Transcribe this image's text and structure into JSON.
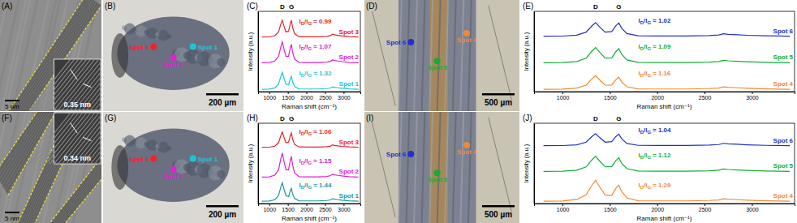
{
  "panels": [
    {
      "label": "(A)",
      "scale_bar": "5 nm",
      "inset_label": "0.35 nm"
    },
    {
      "label": "(B)",
      "scale_bar": "200 µm",
      "spots": [
        {
          "name": "Spot 3",
          "color": "#e8262b"
        },
        {
          "name": "Spot 2",
          "color": "#e020d0"
        },
        {
          "name": "Spot 1",
          "color": "#18c8d8"
        }
      ]
    },
    {
      "label": "(D)",
      "scale_bar": "500 µm",
      "spots": [
        {
          "name": "Spot 6",
          "color": "#2030c8"
        },
        {
          "name": "Spot 5",
          "color": "#10b030"
        },
        {
          "name": "Spot 4",
          "color": "#f08a30"
        }
      ]
    },
    {
      "label": "(F)",
      "scale_bar": "5 nm",
      "inset_label": "0.34 nm"
    },
    {
      "label": "(G)",
      "scale_bar": "200 µm",
      "spots": [
        {
          "name": "Spot 3",
          "color": "#e8262b"
        },
        {
          "name": "Spot 2",
          "color": "#e020d0"
        },
        {
          "name": "Spot 1",
          "color": "#18c8d8"
        }
      ]
    },
    {
      "label": "(I)",
      "scale_bar": "500 µm",
      "spots": [
        {
          "name": "Spot 6",
          "color": "#2030c8"
        },
        {
          "name": "Spot 5",
          "color": "#10b030"
        },
        {
          "name": "Spot 4",
          "color": "#f08a30"
        }
      ]
    }
  ],
  "chart_data": [
    {
      "type": "line",
      "title": "(C)",
      "x_label": "Raman shift (cm⁻¹)",
      "y_label": "Intensity (a.u.)",
      "x": [
        800,
        1000,
        1150,
        1250,
        1310,
        1350,
        1390,
        1450,
        1520,
        1565,
        1595,
        1625,
        1680,
        1800,
        2000,
        2300,
        2550,
        2650,
        2700,
        2750,
        2850,
        2950,
        3150,
        3400
      ],
      "xlim": [
        700,
        3450
      ],
      "xticks": [
        1000,
        1500,
        2000,
        2500,
        3000
      ],
      "ylim": [
        0,
        10
      ],
      "yticks": [],
      "tick_labels": "x",
      "annotations": [
        {
          "text": "D",
          "x": 1350
        },
        {
          "text": "G",
          "x": 1595
        }
      ],
      "series": [
        {
          "name": "Spot 3",
          "color": "#e8262b",
          "ratio_label": "ID/IG ≈ 0.99",
          "values": [
            6.8,
            6.82,
            6.97,
            7.43,
            8.38,
            8.9,
            8.27,
            7.43,
            7.54,
            8.48,
            8.9,
            8.06,
            7.22,
            6.85,
            6.83,
            6.83,
            6.88,
            6.98,
            7.15,
            7.08,
            7.01,
            6.94,
            6.85,
            6.8
          ]
        },
        {
          "name": "Spot 2",
          "color": "#e020d0",
          "ratio_label": "ID/IG ≈ 1.07",
          "values": [
            3.6,
            3.62,
            3.81,
            4.38,
            5.55,
            6.2,
            5.42,
            4.38,
            4.41,
            5.44,
            5.9,
            4.98,
            4.06,
            3.65,
            3.63,
            3.63,
            3.68,
            3.78,
            3.95,
            3.88,
            3.81,
            3.74,
            3.65,
            3.6
          ]
        },
        {
          "name": "Spot 1",
          "color": "#18c8d8",
          "ratio_label": "ID/IG ≈ 1.32",
          "values": [
            0.3,
            0.32,
            0.47,
            0.93,
            1.88,
            2.4,
            1.77,
            0.93,
            0.86,
            1.58,
            1.9,
            1.26,
            0.62,
            0.35,
            0.33,
            0.33,
            0.38,
            0.45,
            0.6,
            0.54,
            0.48,
            0.42,
            0.35,
            0.3
          ]
        }
      ]
    },
    {
      "type": "line",
      "title": "(E)",
      "x_label": "Raman shift (cm⁻¹)",
      "y_label": "Intensity (a.u.)",
      "x": [
        800,
        1000,
        1150,
        1250,
        1310,
        1350,
        1390,
        1450,
        1520,
        1565,
        1595,
        1625,
        1680,
        1800,
        2000,
        2300,
        2550,
        2650,
        2700,
        2750,
        2850,
        2950,
        3150,
        3400
      ],
      "xlim": [
        700,
        3450
      ],
      "xticks": [
        1000,
        1500,
        2000,
        2500,
        3000
      ],
      "ylim": [
        0,
        10
      ],
      "yticks": [],
      "tick_labels": "x",
      "annotations": [
        {
          "text": "D",
          "x": 1350
        },
        {
          "text": "G",
          "x": 1595
        }
      ],
      "series": [
        {
          "name": "Spot 6",
          "color": "#2030c8",
          "ratio_label": "ID/IG ≈ 1.02",
          "values": [
            6.9,
            6.92,
            7.04,
            7.41,
            8.18,
            8.6,
            8.09,
            7.41,
            7.48,
            8.22,
            8.55,
            7.89,
            7.23,
            6.95,
            6.93,
            6.93,
            6.98,
            7.05,
            7.2,
            7.14,
            7.08,
            7.02,
            6.95,
            6.9
          ]
        },
        {
          "name": "Spot 5",
          "color": "#10b030",
          "ratio_label": "ID/IG ≈ 1.09",
          "values": [
            3.6,
            3.62,
            3.75,
            4.17,
            5.03,
            5.5,
            4.93,
            4.17,
            4.21,
            5.0,
            5.35,
            4.65,
            3.95,
            3.65,
            3.63,
            3.63,
            3.68,
            3.75,
            3.9,
            3.84,
            3.78,
            3.72,
            3.65,
            3.6
          ]
        },
        {
          "name": "Spot 4",
          "color": "#f08a30",
          "ratio_label": "ID/IG ≈ 1.16",
          "values": [
            0.3,
            0.32,
            0.44,
            0.81,
            1.58,
            2.0,
            1.49,
            0.81,
            0.83,
            1.5,
            1.8,
            1.2,
            0.6,
            0.35,
            0.33,
            0.33,
            0.38,
            0.45,
            0.6,
            0.54,
            0.48,
            0.42,
            0.35,
            0.3
          ]
        }
      ]
    },
    {
      "type": "line",
      "title": "(H)",
      "x_label": "Raman shift (cm⁻¹)",
      "y_label": "Intensity (a.u.)",
      "x": [
        800,
        1000,
        1150,
        1250,
        1310,
        1350,
        1390,
        1450,
        1520,
        1565,
        1595,
        1625,
        1680,
        1800,
        2000,
        2300,
        2550,
        2650,
        2700,
        2750,
        2850,
        2950,
        3150,
        3400
      ],
      "xlim": [
        700,
        3450
      ],
      "xticks": [
        1000,
        1500,
        2000,
        2500,
        3000
      ],
      "ylim": [
        0,
        10
      ],
      "yticks": [],
      "tick_labels": "x",
      "annotations": [
        {
          "text": "D",
          "x": 1350
        },
        {
          "text": "G",
          "x": 1595
        }
      ],
      "series": [
        {
          "name": "Spot 3",
          "color": "#e8262b",
          "ratio_label": "ID/IG ≈ 1.06",
          "values": [
            7.0,
            7.02,
            7.15,
            7.57,
            8.43,
            8.9,
            8.33,
            7.57,
            7.63,
            8.44,
            8.8,
            8.08,
            7.36,
            7.05,
            7.03,
            7.03,
            7.08,
            7.15,
            7.3,
            7.24,
            7.18,
            7.12,
            7.05,
            7.0
          ]
        },
        {
          "name": "Spot 2",
          "color": "#e020d0",
          "ratio_label": "ID/IG ≈ 1.15",
          "values": [
            3.3,
            3.32,
            3.54,
            4.2,
            5.55,
            6.3,
            5.4,
            4.2,
            4.21,
            5.38,
            5.9,
            4.86,
            3.82,
            3.35,
            3.33,
            3.33,
            3.38,
            3.48,
            3.65,
            3.58,
            3.51,
            3.44,
            3.35,
            3.3
          ]
        },
        {
          "name": "Spot 1",
          "color": "#1a9a9a",
          "ratio_label": "ID/IG ≈ 1.44",
          "values": [
            0.3,
            0.32,
            0.48,
            0.99,
            2.03,
            2.6,
            1.91,
            0.99,
            0.86,
            1.58,
            1.9,
            1.26,
            0.62,
            0.35,
            0.33,
            0.33,
            0.38,
            0.45,
            0.6,
            0.54,
            0.48,
            0.42,
            0.35,
            0.3
          ]
        }
      ]
    },
    {
      "type": "line",
      "title": "(J)",
      "x_label": "Raman shift (cm⁻¹)",
      "y_label": "Intensity (a.u.)",
      "x": [
        800,
        1000,
        1150,
        1250,
        1310,
        1350,
        1390,
        1450,
        1520,
        1565,
        1595,
        1625,
        1680,
        1800,
        2000,
        2300,
        2550,
        2650,
        2700,
        2750,
        2850,
        2950,
        3150,
        3400
      ],
      "xlim": [
        700,
        3450
      ],
      "xticks": [
        1000,
        1500,
        2000,
        2500,
        3000
      ],
      "ylim": [
        0,
        10
      ],
      "yticks": [],
      "tick_labels": "x",
      "annotations": [
        {
          "text": "D",
          "x": 1350
        },
        {
          "text": "G",
          "x": 1595
        }
      ],
      "series": [
        {
          "name": "Spot 6",
          "color": "#2030c8",
          "ratio_label": "ID/IG ≈ 1.04",
          "values": [
            7.2,
            7.22,
            7.32,
            7.65,
            8.33,
            8.7,
            8.25,
            7.65,
            7.71,
            8.36,
            8.65,
            8.07,
            7.49,
            7.25,
            7.23,
            7.23,
            7.28,
            7.35,
            7.5,
            7.44,
            7.38,
            7.32,
            7.25,
            7.2
          ]
        },
        {
          "name": "Spot 5",
          "color": "#10b030",
          "ratio_label": "ID/IG ≈ 1.12",
          "values": [
            4.0,
            4.02,
            4.15,
            4.57,
            5.43,
            5.9,
            5.33,
            4.57,
            4.6,
            5.36,
            5.7,
            5.02,
            4.34,
            4.05,
            4.03,
            4.03,
            4.08,
            4.15,
            4.3,
            4.24,
            4.18,
            4.12,
            4.05,
            4.0
          ]
        },
        {
          "name": "Spot 4",
          "color": "#f08a30",
          "ratio_label": "ID/IG ≈ 1.29",
          "values": [
            0.3,
            0.32,
            0.51,
            1.08,
            2.25,
            2.9,
            2.12,
            1.08,
            1.0,
            1.9,
            2.3,
            1.5,
            0.7,
            0.35,
            0.33,
            0.33,
            0.38,
            0.45,
            0.6,
            0.54,
            0.48,
            0.42,
            0.35,
            0.3
          ]
        }
      ]
    }
  ]
}
